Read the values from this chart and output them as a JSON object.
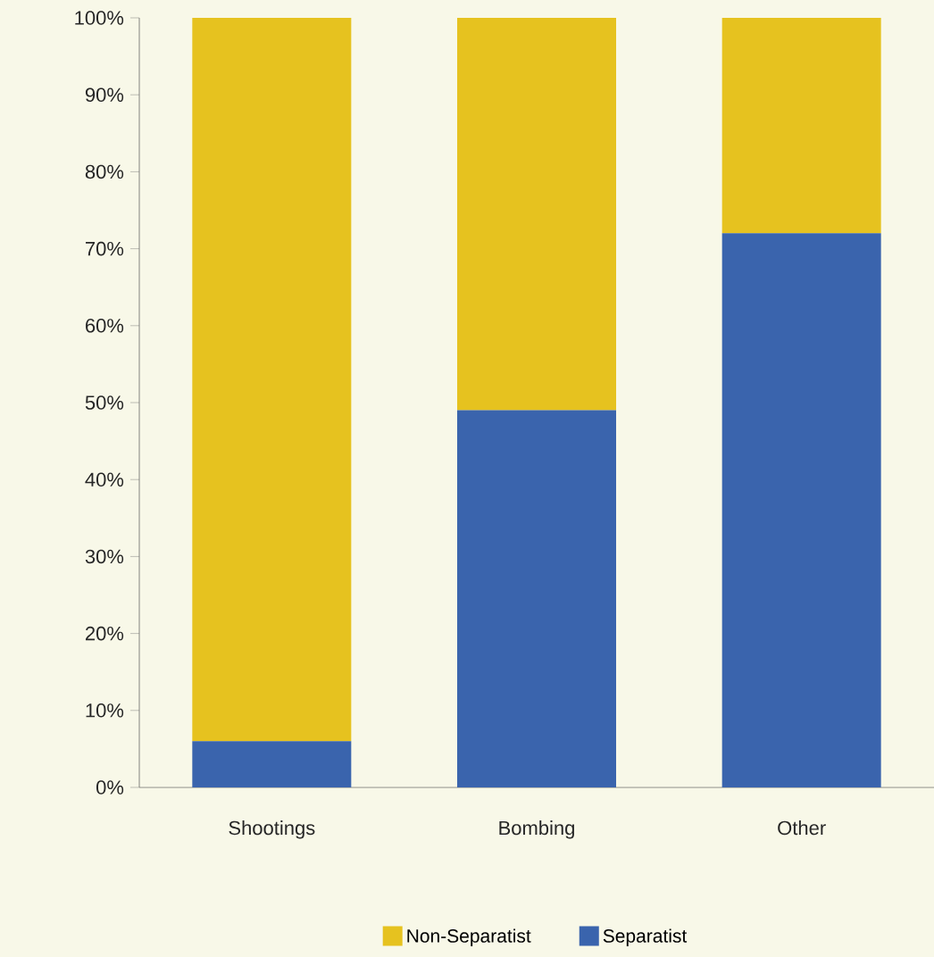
{
  "chart_data": {
    "type": "bar",
    "stacked": true,
    "categories": [
      "Shootings",
      "Bombing",
      "Other"
    ],
    "series": [
      {
        "name": "Separatist",
        "color": "#3a64ad",
        "values": [
          6,
          49,
          72
        ]
      },
      {
        "name": "Non-Separatist",
        "color": "#e6c21f",
        "values": [
          94,
          51,
          28
        ]
      }
    ],
    "ylim": [
      0,
      100
    ],
    "yticks": [
      {
        "value": 0,
        "label": "0%"
      },
      {
        "value": 10,
        "label": "10%"
      },
      {
        "value": 20,
        "label": "20%"
      },
      {
        "value": 30,
        "label": "30%"
      },
      {
        "value": 40,
        "label": "40%"
      },
      {
        "value": 50,
        "label": "50%"
      },
      {
        "value": 60,
        "label": "60%"
      },
      {
        "value": 70,
        "label": "70%"
      },
      {
        "value": 80,
        "label": "80%"
      },
      {
        "value": 90,
        "label": "90%"
      },
      {
        "value": 100,
        "label": "100%"
      }
    ],
    "grid": false,
    "legend": "bottom"
  }
}
